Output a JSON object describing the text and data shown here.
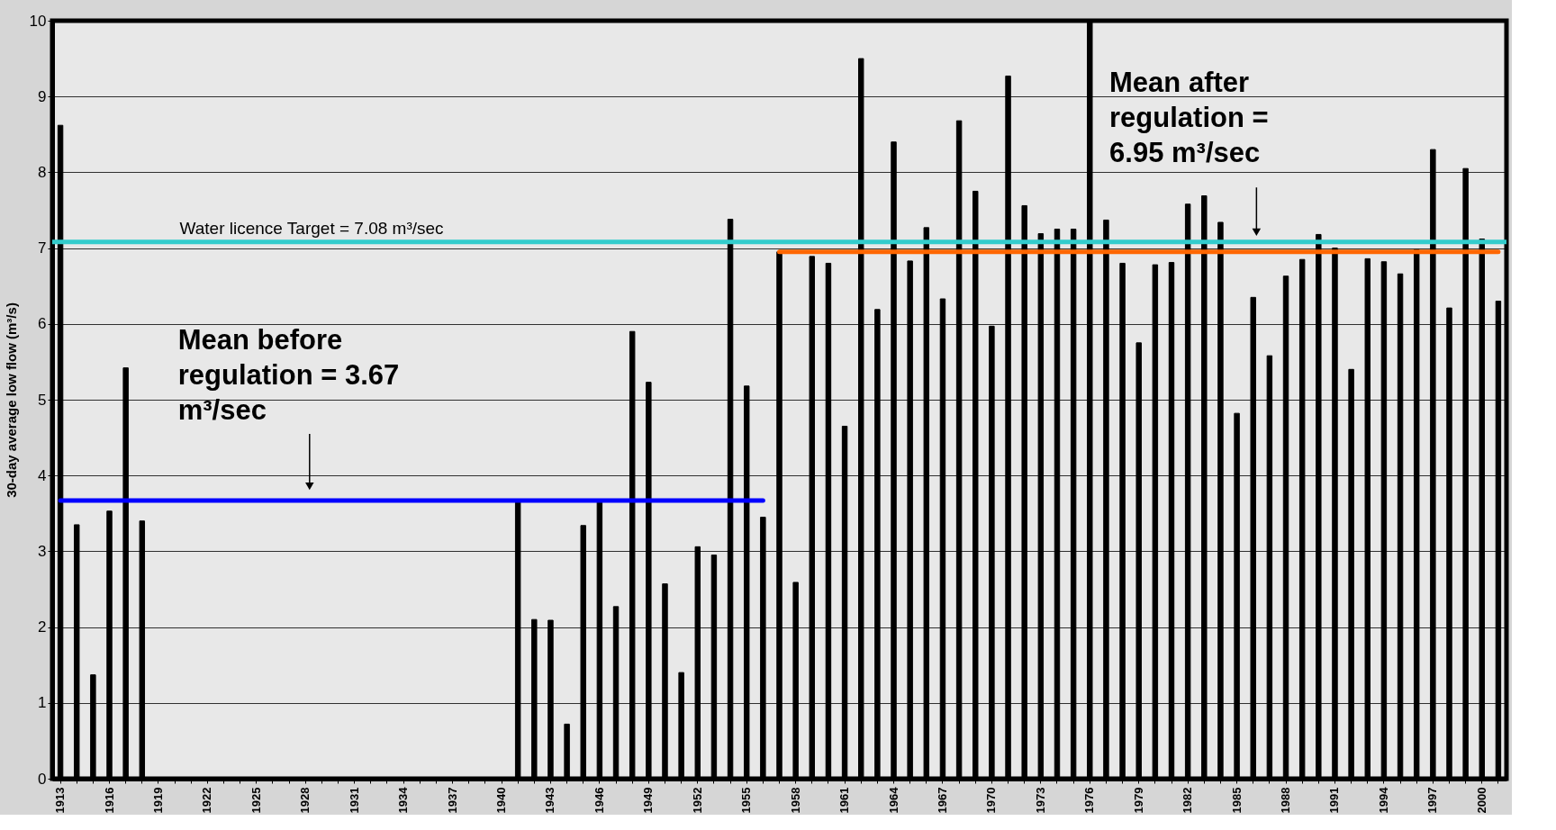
{
  "chart_data": {
    "type": "bar",
    "ylabel": "30-day average low flow (m³/s)",
    "categories": [
      "1913",
      null,
      null,
      "1916",
      null,
      null,
      "1919",
      null,
      null,
      "1922",
      null,
      null,
      "1925",
      null,
      null,
      "1928",
      null,
      null,
      "1931",
      null,
      null,
      "1934",
      null,
      null,
      "1937",
      null,
      null,
      "1940",
      null,
      null,
      "1943",
      null,
      null,
      "1946",
      null,
      null,
      "1949",
      null,
      null,
      "1952",
      null,
      null,
      "1955",
      null,
      null,
      "1958",
      null,
      null,
      "1961",
      null,
      null,
      "1964",
      null,
      null,
      "1967",
      null,
      null,
      "1970",
      null,
      null,
      "1973",
      null,
      null,
      "1976",
      null,
      null,
      "1979",
      null,
      null,
      "1982",
      null,
      null,
      "1985",
      null,
      null,
      "1988",
      null,
      null,
      "1991",
      null,
      null,
      "1994",
      null,
      null,
      "1997",
      null,
      null,
      "2000",
      null
    ],
    "series": [
      {
        "color": "#000000",
        "values": [
          8.62,
          3.35,
          1.37,
          3.53,
          5.42,
          3.4,
          null,
          null,
          null,
          null,
          null,
          null,
          null,
          null,
          null,
          null,
          null,
          null,
          null,
          null,
          null,
          null,
          null,
          null,
          null,
          null,
          null,
          null,
          3.67,
          2.1,
          2.09,
          0.72,
          3.34,
          3.65,
          2.27,
          5.9,
          5.23,
          2.57,
          1.4,
          3.06,
          2.95,
          7.38,
          5.18,
          3.45,
          6.95,
          2.59,
          6.89,
          6.8,
          4.65,
          9.5,
          6.19,
          8.4,
          6.83,
          7.27,
          6.33,
          8.68,
          7.75,
          5.97,
          9.27,
          7.56,
          7.19,
          7.25,
          7.25,
          10.0,
          7.37,
          6.8,
          5.75,
          6.78,
          6.81,
          7.58,
          7.69,
          7.34,
          4.82,
          6.35,
          5.58,
          6.63,
          6.85,
          7.18,
          7.0,
          5.4,
          6.86,
          6.82,
          6.66,
          6.98,
          8.3,
          6.21,
          8.05,
          7.12,
          6.3
        ]
      },
      {
        "type": "line",
        "color": "#0000ff",
        "values": [
          3.67,
          3.67,
          3.67,
          3.67,
          3.67,
          3.67,
          3.67,
          3.67,
          3.67,
          3.67,
          3.67,
          3.67,
          3.67,
          3.67,
          3.67,
          3.67,
          3.67,
          3.67,
          3.67,
          3.67,
          3.67,
          3.67,
          3.67,
          3.67,
          3.67,
          3.67,
          3.67,
          3.67,
          3.67,
          3.67,
          3.67,
          3.67,
          3.67,
          3.67,
          3.67,
          3.67,
          3.67,
          3.67,
          3.67,
          3.67,
          3.67,
          3.67,
          3.67,
          3.67,
          null,
          null,
          null,
          null,
          null,
          null,
          null,
          null,
          null,
          null,
          null,
          null,
          null,
          null,
          null,
          null,
          null,
          null,
          null,
          null,
          null,
          null,
          null,
          null,
          null,
          null,
          null,
          null,
          null,
          null,
          null,
          null,
          null,
          null,
          null,
          null,
          null,
          null,
          null,
          null,
          null,
          null,
          null,
          null,
          null
        ]
      },
      {
        "type": "line",
        "color": "#ff6600",
        "values": [
          null,
          null,
          null,
          null,
          null,
          null,
          null,
          null,
          null,
          null,
          null,
          null,
          null,
          null,
          null,
          null,
          null,
          null,
          null,
          null,
          null,
          null,
          null,
          null,
          null,
          null,
          null,
          null,
          null,
          null,
          null,
          null,
          null,
          null,
          null,
          null,
          null,
          null,
          null,
          null,
          null,
          null,
          null,
          null,
          6.95,
          6.95,
          6.95,
          6.95,
          6.95,
          6.95,
          6.95,
          6.95,
          6.95,
          6.95,
          6.95,
          6.95,
          6.95,
          6.95,
          6.95,
          6.95,
          6.95,
          6.95,
          6.95,
          6.95,
          6.95,
          6.95,
          6.95,
          6.95,
          6.95,
          6.95,
          6.95,
          6.95,
          6.95,
          6.95,
          6.95,
          6.95,
          6.95,
          6.95,
          6.95,
          6.95,
          6.95,
          6.95,
          6.95,
          6.95,
          6.95,
          6.95,
          6.95,
          6.95,
          6.95
        ]
      }
    ],
    "ylim": [
      0,
      10
    ],
    "yticks": [
      0,
      1,
      2,
      3,
      4,
      5,
      6,
      7,
      8,
      9,
      10
    ],
    "grid": "y",
    "ref_lines": [
      {
        "axis": "y",
        "value": 7.08,
        "label": "Water licence Target = 7.08 m³/sec",
        "color": "#33cccc"
      }
    ],
    "annotations": [
      "Mean before regulation = 3.67 m³/sec",
      "Mean after regulation = 6.95 m³/sec"
    ]
  }
}
